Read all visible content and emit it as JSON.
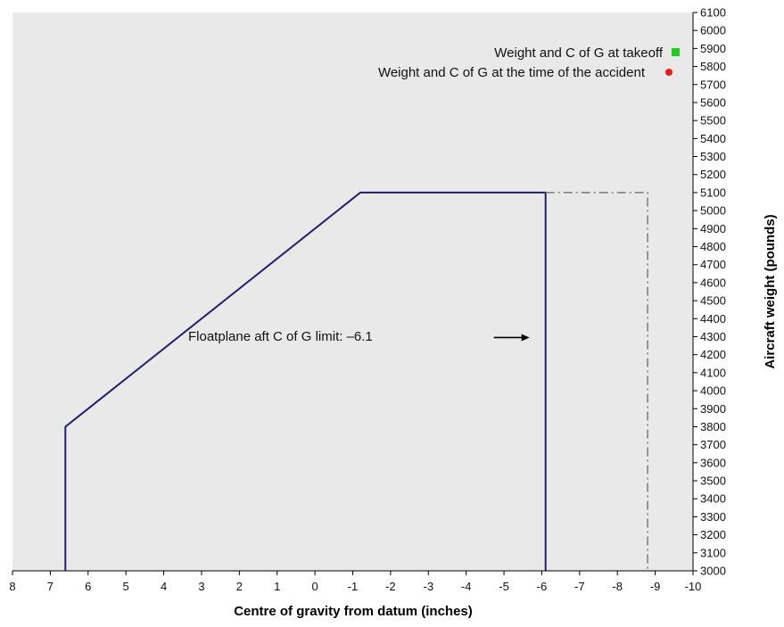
{
  "chart_data": {
    "type": "line",
    "title": "",
    "xlabel": "Centre of gravity from datum (inches)",
    "ylabel": "Aircraft weight (pounds)",
    "xlim": [
      8,
      -10
    ],
    "ylim": [
      3000,
      6100
    ],
    "x_ticks": [
      8,
      7,
      6,
      5,
      4,
      3,
      2,
      1,
      0,
      -1,
      -2,
      -3,
      -4,
      -5,
      -6,
      -7,
      -8,
      -9,
      -10
    ],
    "y_ticks": [
      3000,
      3100,
      3200,
      3300,
      3400,
      3500,
      3600,
      3700,
      3800,
      3900,
      4000,
      4100,
      4200,
      4300,
      4400,
      4500,
      4600,
      4700,
      4800,
      4900,
      5000,
      5100,
      5200,
      5300,
      5400,
      5500,
      5600,
      5700,
      5800,
      5900,
      6000,
      6100
    ],
    "grid": false,
    "background": "#e9e9e9",
    "series": [
      {
        "style": "solid",
        "color": "#1f1f6e",
        "points": [
          [
            6.6,
            3000
          ],
          [
            6.6,
            3800
          ],
          [
            -1.2,
            5100
          ],
          [
            -6.1,
            5100
          ],
          [
            -6.1,
            3000
          ]
        ]
      },
      {
        "style": "dash-dot",
        "color": "#7a7a7a",
        "points": [
          [
            -6.1,
            5100
          ],
          [
            -8.8,
            5100
          ],
          [
            -8.8,
            3000
          ]
        ]
      }
    ],
    "legend": {
      "placement": "top-right",
      "entries": [
        {
          "label": "Weight and C of G at takeoff",
          "marker": "square",
          "color": "#22cc22"
        },
        {
          "label": "Weight and C of G at the time of the accident",
          "marker": "circle",
          "color": "#e21b1b"
        }
      ]
    },
    "annotations": [
      {
        "text": "Floatplane aft C of G limit: –6.1",
        "arrow": "right",
        "arrow_target": [
          -6.1,
          4300
        ],
        "y": 4300
      }
    ]
  }
}
